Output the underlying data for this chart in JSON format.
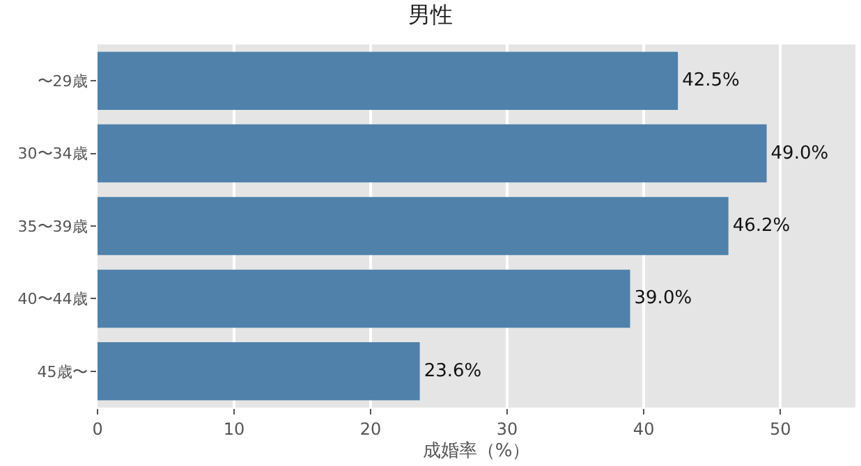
{
  "chart_data": {
    "type": "bar",
    "orientation": "horizontal",
    "title": "男性",
    "xlabel": "成婚率（%）",
    "categories": [
      "〜29歳",
      "30〜34歳",
      "35〜39歳",
      "40〜44歳",
      "45歳〜"
    ],
    "values": [
      42.5,
      49.0,
      46.2,
      39.0,
      23.6
    ],
    "value_labels": [
      "42.5%",
      "49.0%",
      "46.2%",
      "39.0%",
      "23.6%"
    ],
    "color": "#4f81aa",
    "xlim": [
      0,
      55.5
    ],
    "xticks": [
      0,
      10,
      20,
      30,
      40,
      50
    ],
    "grid": "x"
  }
}
